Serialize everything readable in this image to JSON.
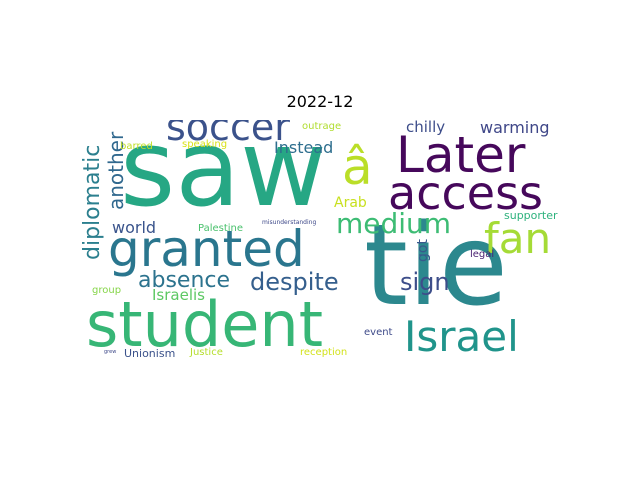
{
  "title": "2022-12",
  "words": [
    {
      "text": "saw",
      "color": "#26a784"
    },
    {
      "text": "tie",
      "color": "#2c888e"
    },
    {
      "text": "student",
      "color": "#37b676"
    },
    {
      "text": "Later",
      "color": "#46085b"
    },
    {
      "text": "access",
      "color": "#46085b"
    },
    {
      "text": "granted",
      "color": "#2a768e"
    },
    {
      "text": "â",
      "color": "#bade28"
    },
    {
      "text": "soccer",
      "color": "#3b528b"
    },
    {
      "text": "Israel",
      "color": "#20948b"
    },
    {
      "text": "fan",
      "color": "#a5db36"
    },
    {
      "text": "medium",
      "color": "#3dbc74"
    },
    {
      "text": "despite",
      "color": "#355f8d"
    },
    {
      "text": "absence",
      "color": "#2c738e"
    },
    {
      "text": "diplomatic",
      "color": "#2b7f8e"
    },
    {
      "text": "another",
      "color": "#30688e"
    },
    {
      "text": "sign",
      "color": "#3d4e8a"
    },
    {
      "text": "world",
      "color": "#3a548c"
    },
    {
      "text": "Instead",
      "color": "#2e6e8e"
    },
    {
      "text": "warming",
      "color": "#3f4788"
    },
    {
      "text": "chilly",
      "color": "#3d4d8a"
    },
    {
      "text": "Israelis",
      "color": "#5cc863"
    },
    {
      "text": "Arab",
      "color": "#c8e020"
    },
    {
      "text": "got",
      "color": "#37598c"
    },
    {
      "text": "outrage",
      "color": "#b0dd2f"
    },
    {
      "text": "barred",
      "color": "#c0df25"
    },
    {
      "text": "speaking",
      "color": "#d8e219"
    },
    {
      "text": "Palestine",
      "color": "#4ac16d"
    },
    {
      "text": "supporter",
      "color": "#2db27d"
    },
    {
      "text": "legal",
      "color": "#481f70"
    },
    {
      "text": "group",
      "color": "#86d549"
    },
    {
      "text": "event",
      "color": "#3e4a89"
    },
    {
      "text": "Unionism",
      "color": "#3b528b"
    },
    {
      "text": "Justice",
      "color": "#b5de2b"
    },
    {
      "text": "reception",
      "color": "#d2e21b"
    },
    {
      "text": "misunderstanding",
      "color": "#3e4989"
    },
    {
      "text": "grew",
      "color": "#3e4989"
    }
  ]
}
